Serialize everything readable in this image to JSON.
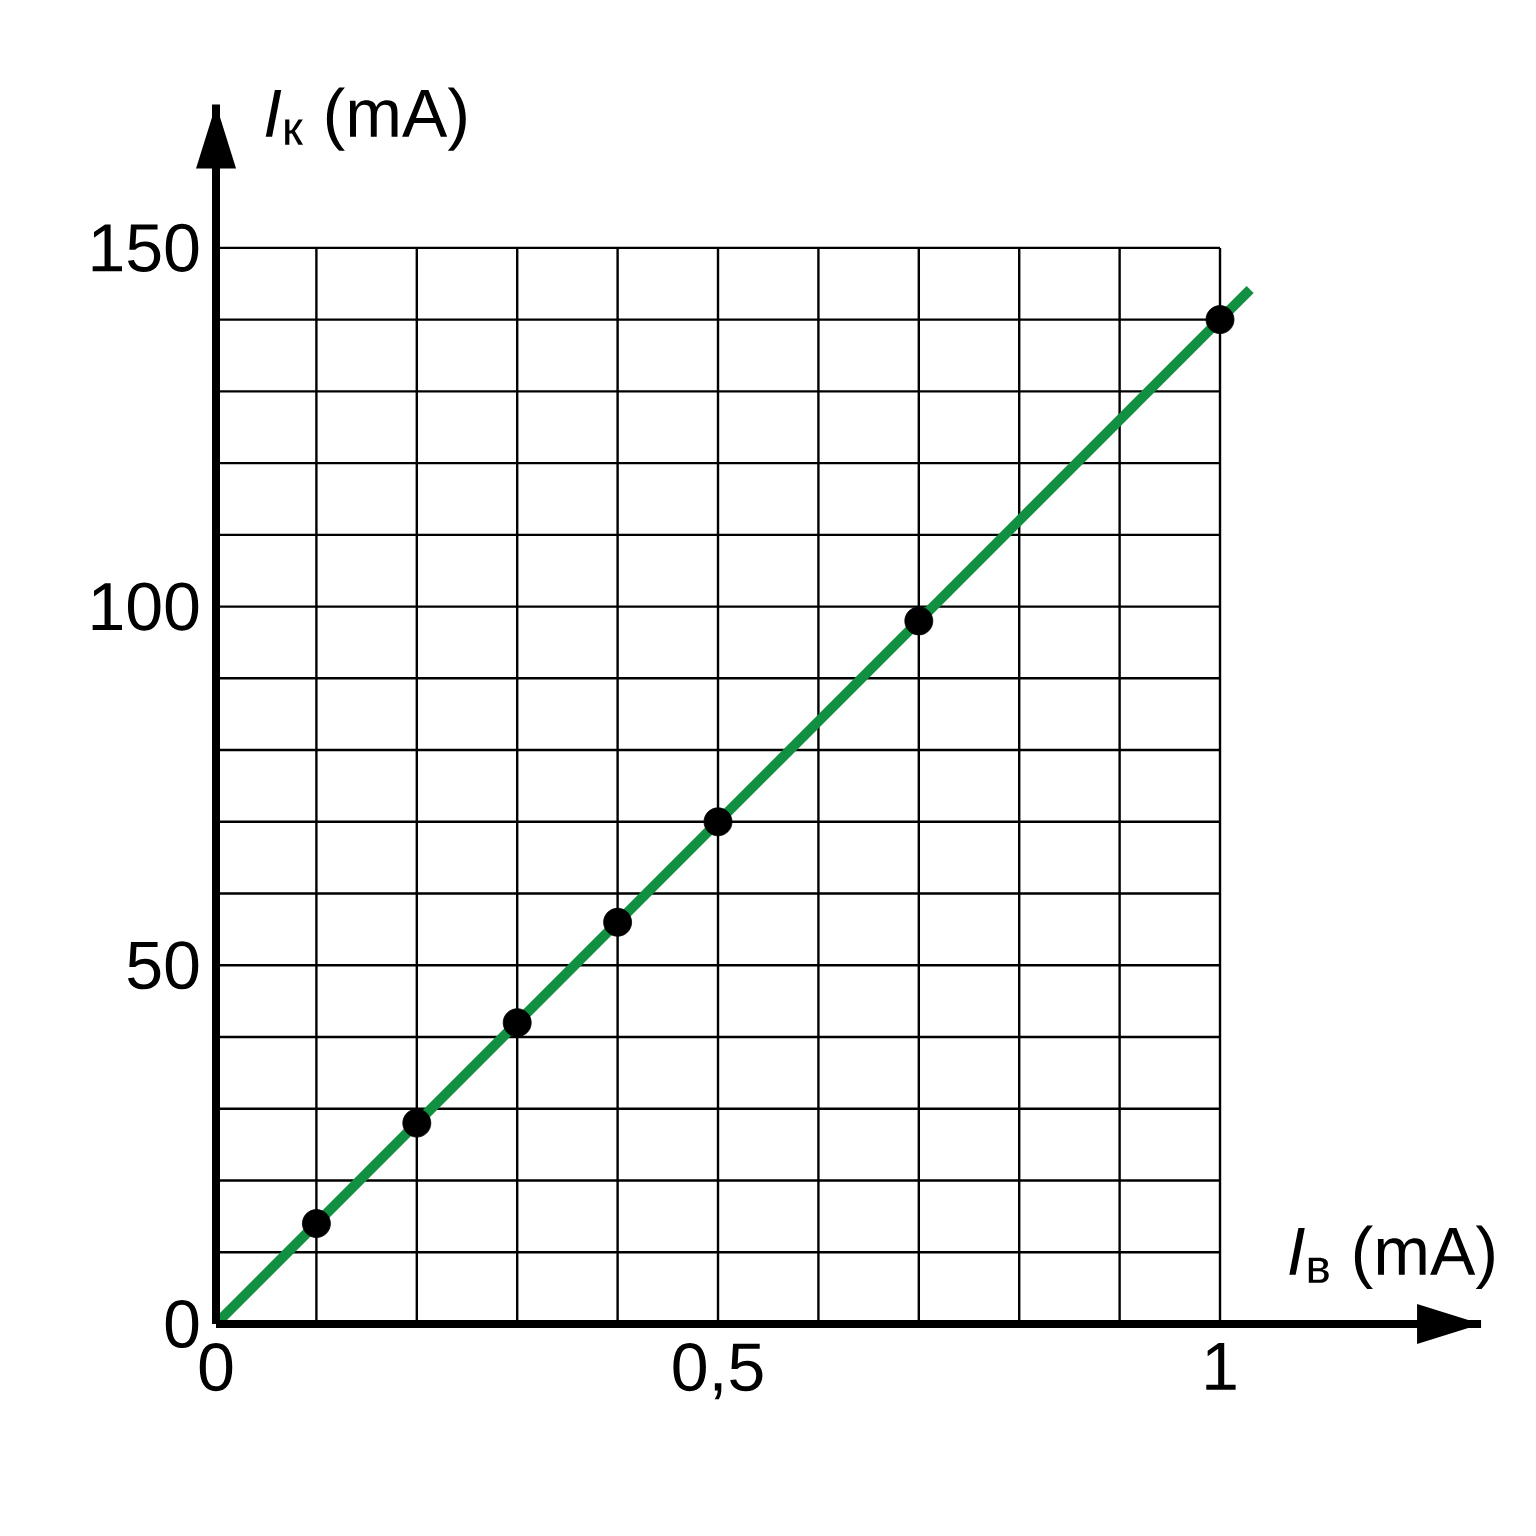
{
  "chart_data": {
    "type": "scatter",
    "xlabel": "*I*$_{в}$ (mA)",
    "ylabel": "*I*$_{к}$ (mA)",
    "xlim": [
      0,
      1.26
    ],
    "ylim": [
      0,
      170
    ],
    "xticks": [
      0,
      {
        "value": 0.1,
        "label": null
      },
      {
        "value": 0.2,
        "label": null
      },
      {
        "value": 0.3,
        "label": null
      },
      {
        "value": 0.4,
        "label": null
      },
      {
        "value": 0.5,
        "label": "0,5"
      },
      {
        "value": 0.6,
        "label": null
      },
      {
        "value": 0.7,
        "label": null
      },
      {
        "value": 0.8,
        "label": null
      },
      {
        "value": 0.9,
        "label": null
      },
      1
    ],
    "yticks": [
      0,
      {
        "value": 10,
        "label": null
      },
      {
        "value": 20,
        "label": null
      },
      {
        "value": 30,
        "label": null
      },
      {
        "value": 40,
        "label": null
      },
      50,
      {
        "value": 60,
        "label": null
      },
      {
        "value": 70,
        "label": null
      },
      {
        "value": 80,
        "label": null
      },
      {
        "value": 90,
        "label": null
      },
      100,
      {
        "value": 110,
        "label": null
      },
      {
        "value": 120,
        "label": null
      },
      {
        "value": 130,
        "label": null
      },
      {
        "value": 140,
        "label": null
      },
      150
    ],
    "grid": true,
    "series": [
      {
        "type": "line",
        "x": [
          0,
          1.03
        ],
        "values": [
          0,
          144.2
        ],
        "color": "#109040",
        "marker": "none"
      },
      {
        "x": [
          0.1,
          0.2,
          0.3,
          0.4,
          0.5,
          0.7,
          1.0
        ],
        "values": [
          14,
          28,
          42,
          56,
          70,
          98,
          140
        ],
        "color": "#000000",
        "marker": "circle"
      }
    ]
  }
}
